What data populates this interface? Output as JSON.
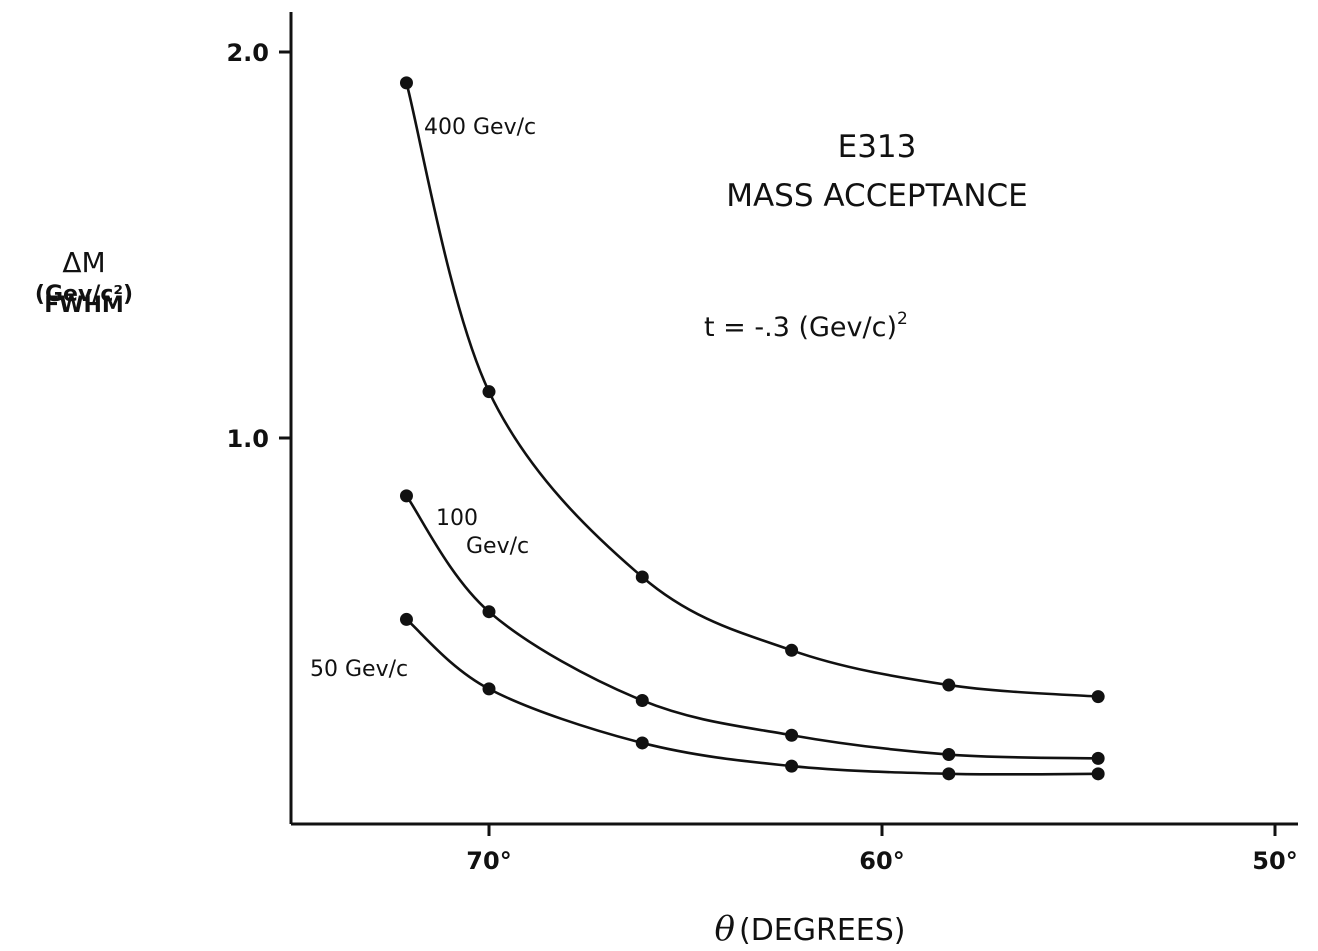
{
  "chart_data": {
    "type": "line",
    "title": "E313",
    "subtitle": "MASS ACCEPTANCE",
    "annotation": "t = -.3 (Gev/c)",
    "annotation_superscript": "2",
    "xlabel_symbol": "θ",
    "xlabel": "(DEGREES)",
    "ylabel_symbol": "ΔM",
    "ylabel_units": "(Gev/c²)",
    "ylabel_quantity": "FWHM",
    "x_reversed": true,
    "xlim": [
      75,
      49.5
    ],
    "ylim": [
      0,
      2.1
    ],
    "grid": false,
    "x_ticks": [
      {
        "value": 70,
        "label": "70°"
      },
      {
        "value": 60,
        "label": "60°"
      },
      {
        "value": 50,
        "label": "50°"
      }
    ],
    "y_ticks": [
      {
        "value": 1.0,
        "label": "1.0"
      },
      {
        "value": 2.0,
        "label": "2.0"
      }
    ],
    "series": [
      {
        "name": "400 Gev/c",
        "x": [
          72.1,
          70.0,
          66.1,
          62.3,
          58.3,
          54.5
        ],
        "y": [
          1.92,
          1.12,
          0.64,
          0.45,
          0.36,
          0.33
        ]
      },
      {
        "name": "100 Gev/c",
        "x": [
          72.1,
          70.0,
          66.1,
          62.3,
          58.3,
          54.5
        ],
        "y": [
          0.85,
          0.55,
          0.32,
          0.23,
          0.18,
          0.17
        ]
      },
      {
        "name": "50 Gev/c",
        "x": [
          72.1,
          70.0,
          66.1,
          62.3,
          58.3,
          54.5
        ],
        "y": [
          0.53,
          0.35,
          0.21,
          0.15,
          0.13,
          0.13
        ]
      }
    ]
  }
}
